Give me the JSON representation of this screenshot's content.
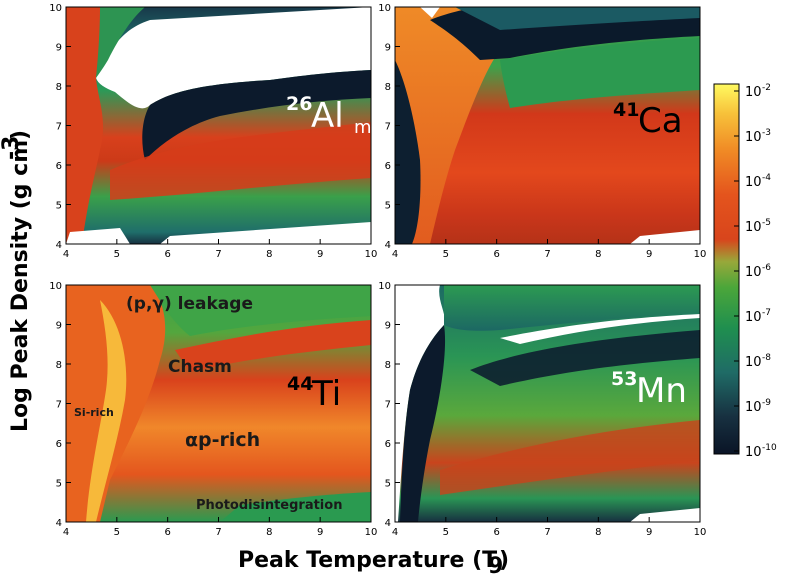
{
  "chart_data": [
    {
      "type": "heatmap",
      "panel": "top-left",
      "isotope": {
        "mass": "26",
        "symbol": "Al",
        "subscript": "m"
      },
      "xlim": [
        4,
        10
      ],
      "ylim": [
        4,
        10
      ],
      "xticks": [
        "4",
        "5",
        "6",
        "7",
        "8",
        "9",
        "10"
      ],
      "yticks": [
        "4",
        "5",
        "6",
        "7",
        "8",
        "9",
        "10"
      ],
      "annotations": []
    },
    {
      "type": "heatmap",
      "panel": "top-right",
      "isotope": {
        "mass": "41",
        "symbol": "Ca",
        "subscript": ""
      },
      "xlim": [
        4,
        10
      ],
      "ylim": [
        4,
        10
      ],
      "xticks": [
        "4",
        "5",
        "6",
        "7",
        "8",
        "9",
        "10"
      ],
      "yticks": [
        "4",
        "5",
        "6",
        "7",
        "8",
        "9",
        "10"
      ],
      "annotations": []
    },
    {
      "type": "heatmap",
      "panel": "bottom-left",
      "isotope": {
        "mass": "44",
        "symbol": "Ti",
        "subscript": ""
      },
      "xlim": [
        4,
        10
      ],
      "ylim": [
        4,
        10
      ],
      "xticks": [
        "4",
        "5",
        "6",
        "7",
        "8",
        "9",
        "10"
      ],
      "yticks": [
        "4",
        "5",
        "6",
        "7",
        "8",
        "9",
        "10"
      ],
      "annotations": [
        "(p,γ) leakage",
        "Chasm",
        "Si-rich",
        "αp-rich",
        "Photodisintegration"
      ]
    },
    {
      "type": "heatmap",
      "panel": "bottom-right",
      "isotope": {
        "mass": "53",
        "symbol": "Mn",
        "subscript": ""
      },
      "xlim": [
        4,
        10
      ],
      "ylim": [
        4,
        10
      ],
      "xticks": [
        "4",
        "5",
        "6",
        "7",
        "8",
        "9",
        "10"
      ],
      "yticks": [
        "4",
        "5",
        "6",
        "7",
        "8",
        "9",
        "10"
      ],
      "annotations": []
    }
  ],
  "axes": {
    "xlabel": "Peak Temperature (T",
    "xlabel_sub": "9",
    "xlabel_end": ")",
    "ylabel": "Log Peak Density (g cm",
    "ylabel_sup": "-3",
    "ylabel_end": ")"
  },
  "colorbar": {
    "ticks": [
      {
        "base": "10",
        "exp": "-2"
      },
      {
        "base": "10",
        "exp": "-3"
      },
      {
        "base": "10",
        "exp": "-4"
      },
      {
        "base": "10",
        "exp": "-5"
      },
      {
        "base": "10",
        "exp": "-6"
      },
      {
        "base": "10",
        "exp": "-7"
      },
      {
        "base": "10",
        "exp": "-8"
      },
      {
        "base": "10",
        "exp": "-9"
      },
      {
        "base": "10",
        "exp": "-10"
      }
    ],
    "colormap": [
      "#0a1426",
      "#173040",
      "#1f6b66",
      "#1f8f4f",
      "#4ba63a",
      "#98a83a",
      "#d8451c",
      "#e4541d",
      "#f08a25",
      "#f7c13a",
      "#fffa60"
    ]
  },
  "colors": {
    "label_white": "#ffffff",
    "label_black": "#000000",
    "void": "#ffffff"
  }
}
